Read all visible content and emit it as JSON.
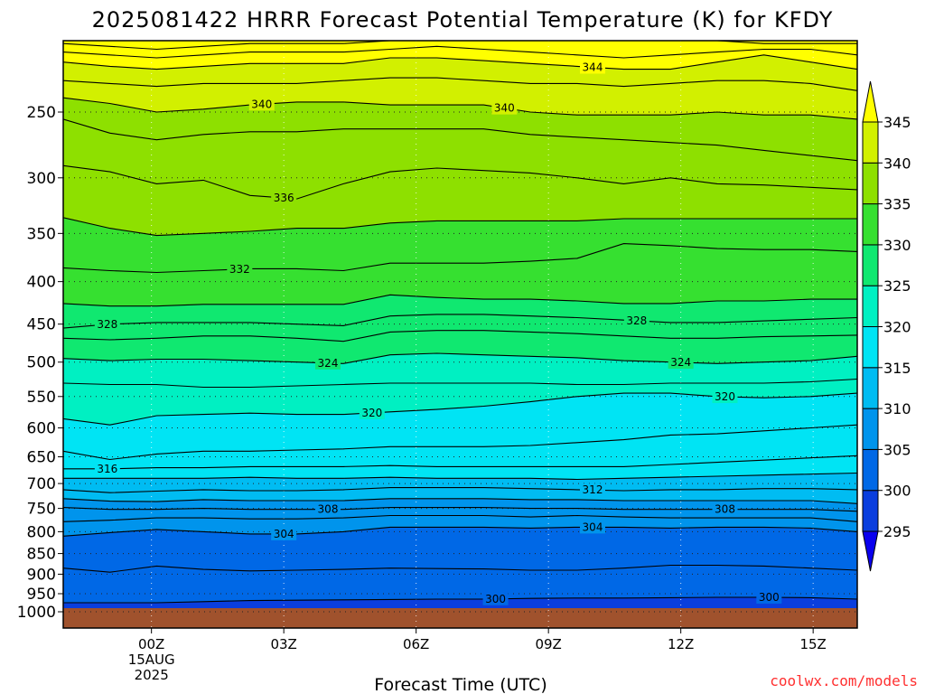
{
  "chart_data": {
    "type": "filled-contour",
    "title": "2025081422 HRRR Forecast Potential Temperature (K) for KFDY",
    "xlabel": "Forecast Time (UTC)",
    "ylabel": "",
    "credit": "coolwx.com/models",
    "x_ticks": [
      {
        "hour": 0,
        "lines": [
          "00Z",
          "15AUG",
          "2025"
        ]
      },
      {
        "hour": 3,
        "lines": [
          "03Z"
        ]
      },
      {
        "hour": 6,
        "lines": [
          "06Z"
        ]
      },
      {
        "hour": 9,
        "lines": [
          "09Z"
        ]
      },
      {
        "hour": 12,
        "lines": [
          "12Z"
        ]
      },
      {
        "hour": 15,
        "lines": [
          "15Z"
        ]
      }
    ],
    "xlim": [
      -2,
      16
    ],
    "y_ticks": [
      250,
      300,
      350,
      400,
      450,
      500,
      550,
      600,
      650,
      700,
      750,
      800,
      850,
      900,
      950,
      1000
    ],
    "ylim_hPa": [
      200,
      1000
    ],
    "colorbar": {
      "levels": [
        295,
        300,
        305,
        310,
        315,
        320,
        325,
        330,
        335,
        340,
        345
      ],
      "colors": [
        "#0a00ee",
        "#0a3ede",
        "#0068e6",
        "#0094ec",
        "#00bcf2",
        "#00e4f4",
        "#00f0c2",
        "#10e870",
        "#36e030",
        "#8ee000",
        "#d2f000",
        "#ffff00"
      ],
      "extend": "both"
    },
    "series": [
      {
        "value": 300,
        "labels": [
          {
            "hour": 7.8,
            "text": "300"
          },
          {
            "hour": 14.0,
            "text": "300"
          }
        ],
        "p": [
          975,
          975,
          975,
          972,
          969,
          968,
          967,
          966,
          965,
          965,
          963,
          962,
          962,
          961,
          960,
          960,
          961,
          965
        ]
      },
      {
        "value": 302,
        "labels": [],
        "p": [
          885,
          895,
          880,
          888,
          892,
          890,
          888,
          885,
          886,
          887,
          890,
          890,
          885,
          878,
          878,
          880,
          885,
          890
        ]
      },
      {
        "value": 304,
        "labels": [
          {
            "hour": 3.0,
            "text": "304"
          },
          {
            "hour": 10.0,
            "text": "304"
          }
        ],
        "p": [
          810,
          802,
          795,
          800,
          805,
          805,
          800,
          790,
          790,
          790,
          792,
          790,
          790,
          792,
          790,
          790,
          792,
          800
        ]
      },
      {
        "value": 306,
        "labels": [],
        "p": [
          778,
          775,
          770,
          770,
          772,
          772,
          770,
          765,
          765,
          765,
          768,
          765,
          768,
          770,
          770,
          770,
          770,
          778
        ]
      },
      {
        "value": 308,
        "labels": [
          {
            "hour": 4.0,
            "text": "308"
          },
          {
            "hour": 13.0,
            "text": "308"
          }
        ],
        "p": [
          748,
          752,
          752,
          750,
          752,
          752,
          752,
          748,
          748,
          748,
          750,
          750,
          752,
          752,
          752,
          752,
          752,
          756
        ]
      },
      {
        "value": 310,
        "labels": [],
        "p": [
          730,
          735,
          736,
          732,
          734,
          734,
          734,
          730,
          730,
          730,
          732,
          732,
          734,
          734,
          734,
          734,
          734,
          740
        ]
      },
      {
        "value": 312,
        "labels": [
          {
            "hour": 10.0,
            "text": "312"
          }
        ],
        "p": [
          712,
          718,
          715,
          712,
          714,
          714,
          712,
          708,
          708,
          708,
          710,
          712,
          714,
          712,
          712,
          710,
          710,
          712
        ]
      },
      {
        "value": 314,
        "labels": [],
        "p": [
          690,
          690,
          690,
          690,
          688,
          690,
          690,
          688,
          690,
          690,
          690,
          692,
          690,
          688,
          686,
          684,
          682,
          680
        ]
      },
      {
        "value": 316,
        "labels": [
          {
            "hour": -1.0,
            "text": "316"
          }
        ],
        "p": [
          672,
          672,
          670,
          670,
          668,
          668,
          668,
          666,
          668,
          668,
          668,
          668,
          668,
          664,
          660,
          656,
          652,
          648
        ]
      },
      {
        "value": 318,
        "labels": [],
        "p": [
          640,
          655,
          645,
          640,
          640,
          638,
          636,
          632,
          632,
          632,
          630,
          625,
          620,
          612,
          610,
          605,
          600,
          595
        ]
      },
      {
        "value": 320,
        "labels": [
          {
            "hour": 5.0,
            "text": "320"
          },
          {
            "hour": 13.0,
            "text": "320"
          }
        ],
        "p": [
          585,
          595,
          580,
          578,
          576,
          578,
          578,
          574,
          570,
          565,
          558,
          550,
          545,
          545,
          550,
          552,
          550,
          545
        ]
      },
      {
        "value": 322,
        "labels": [],
        "p": [
          530,
          532,
          532,
          536,
          536,
          534,
          532,
          530,
          530,
          530,
          530,
          532,
          532,
          530,
          530,
          530,
          528,
          524
        ]
      },
      {
        "value": 324,
        "labels": [
          {
            "hour": 4.0,
            "text": "324"
          },
          {
            "hour": 12.0,
            "text": "324"
          }
        ],
        "p": [
          495,
          498,
          496,
          496,
          498,
          500,
          502,
          490,
          488,
          490,
          492,
          494,
          498,
          500,
          502,
          500,
          498,
          492
        ]
      },
      {
        "value": 326,
        "labels": [],
        "p": [
          468,
          470,
          468,
          465,
          465,
          468,
          472,
          460,
          458,
          458,
          460,
          462,
          465,
          468,
          468,
          466,
          465,
          464
        ]
      },
      {
        "value": 328,
        "labels": [
          {
            "hour": -1.0,
            "text": "328"
          },
          {
            "hour": 11.0,
            "text": "328"
          }
        ],
        "p": [
          455,
          450,
          448,
          448,
          448,
          450,
          452,
          440,
          438,
          438,
          440,
          442,
          445,
          448,
          448,
          446,
          444,
          442
        ]
      },
      {
        "value": 330,
        "labels": [],
        "p": [
          425,
          428,
          428,
          426,
          426,
          426,
          426,
          415,
          418,
          420,
          420,
          422,
          425,
          425,
          422,
          422,
          420,
          420
        ]
      },
      {
        "value": 332,
        "labels": [
          {
            "hour": 2.0,
            "text": "332"
          }
        ],
        "p": [
          385,
          388,
          390,
          388,
          386,
          386,
          388,
          380,
          380,
          380,
          378,
          375,
          360,
          362,
          365,
          366,
          366,
          368
        ]
      },
      {
        "value": 334,
        "labels": [],
        "p": [
          335,
          345,
          352,
          350,
          348,
          345,
          345,
          340,
          338,
          338,
          338,
          338,
          336,
          336,
          336,
          336,
          336,
          336
        ]
      },
      {
        "value": 336,
        "labels": [
          {
            "hour": 3.0,
            "text": "336"
          }
        ],
        "p": [
          290,
          295,
          305,
          302,
          315,
          318,
          305,
          295,
          292,
          294,
          296,
          300,
          305,
          300,
          305,
          306,
          308,
          310
        ]
      },
      {
        "value": 338,
        "labels": [],
        "p": [
          255,
          265,
          270,
          266,
          264,
          264,
          262,
          262,
          262,
          262,
          266,
          268,
          270,
          272,
          274,
          278,
          282,
          286
        ]
      },
      {
        "value": 340,
        "labels": [
          {
            "hour": 2.5,
            "text": "340"
          },
          {
            "hour": 8.0,
            "text": "340"
          }
        ],
        "p": [
          240,
          244,
          250,
          248,
          245,
          243,
          243,
          245,
          245,
          245,
          250,
          252,
          252,
          252,
          250,
          252,
          252,
          255
        ]
      },
      {
        "value": 342,
        "labels": [],
        "p": [
          228,
          230,
          232,
          230,
          230,
          230,
          228,
          226,
          226,
          228,
          230,
          230,
          232,
          230,
          228,
          228,
          230,
          235
        ]
      },
      {
        "value": 344,
        "labels": [
          {
            "hour": 10.0,
            "text": "344"
          }
        ],
        "p": [
          215,
          218,
          220,
          218,
          216,
          216,
          216,
          212,
          212,
          214,
          216,
          218,
          220,
          220,
          215,
          210,
          215,
          220
        ]
      },
      {
        "value": 346,
        "labels": [],
        "p": [
          208,
          210,
          212,
          210,
          208,
          208,
          208,
          206,
          204,
          206,
          208,
          210,
          212,
          210,
          208,
          206,
          206,
          210
        ]
      },
      {
        "value": 348,
        "labels": [],
        "p": [
          202,
          204,
          206,
          204,
          202,
          202,
          202,
          200,
          198,
          200,
          200,
          200,
          200,
          200,
          200,
          202,
          202,
          202
        ]
      }
    ]
  }
}
